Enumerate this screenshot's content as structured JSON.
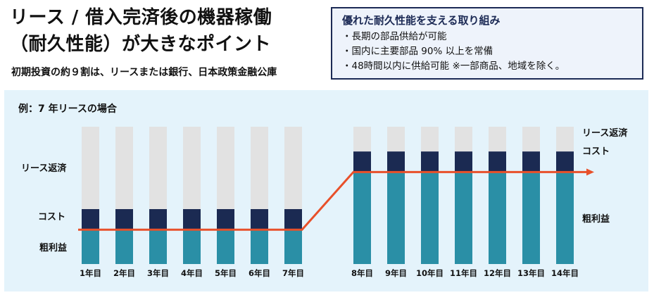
{
  "header": {
    "title_line1": "リース / 借入完済後の機器稼働",
    "title_line2": "（耐久性能）が大きなポイント",
    "subtitle": "初期投資の約９割は、リースまたは銀行、日本政策金融公庫"
  },
  "infobox": {
    "title": "優れた耐久性能を支える取り組み",
    "items": [
      "長期の部品供給が可能",
      "国内に主要部品 90% 以上を常備",
      "48時間以内に供給可能 ※一部商品、地域を除く。"
    ]
  },
  "chart_data": {
    "type": "bar",
    "stacked": true,
    "title": "例：7 年リースの場合",
    "categories": [
      "1年目",
      "2年目",
      "3年目",
      "4年目",
      "5年目",
      "6年目",
      "7年目",
      "8年目",
      "9年目",
      "10年目",
      "11年目",
      "12年目",
      "13年目",
      "14年目"
    ],
    "series": [
      {
        "name": "粗利益",
        "values": [
          25,
          25,
          25,
          25,
          25,
          25,
          25,
          67,
          67,
          67,
          67,
          67,
          67,
          67
        ]
      },
      {
        "name": "コスト",
        "values": [
          15,
          15,
          15,
          15,
          15,
          15,
          15,
          15,
          15,
          15,
          15,
          15,
          15,
          15
        ]
      },
      {
        "name": "リース返済",
        "values": [
          60,
          60,
          60,
          60,
          60,
          60,
          60,
          0,
          0,
          0,
          0,
          0,
          0,
          0
        ]
      }
    ],
    "residual_top": [
      0,
      0,
      0,
      0,
      0,
      0,
      0,
      18,
      18,
      18,
      18,
      18,
      18,
      18
    ],
    "trend_line": [
      25,
      25,
      25,
      25,
      25,
      25,
      25,
      67,
      67,
      67,
      67,
      67,
      67,
      67
    ],
    "ylim": [
      0,
      100
    ],
    "legend_left": [
      "リース返済",
      "コスト",
      "粗利益"
    ],
    "legend_right": [
      "リース返済",
      "コスト",
      "粗利益"
    ],
    "colors": {
      "profit": "#2a8fa6",
      "cost": "#1b2a52",
      "lease": "#e2e2e2",
      "line": "#e8502a"
    }
  }
}
